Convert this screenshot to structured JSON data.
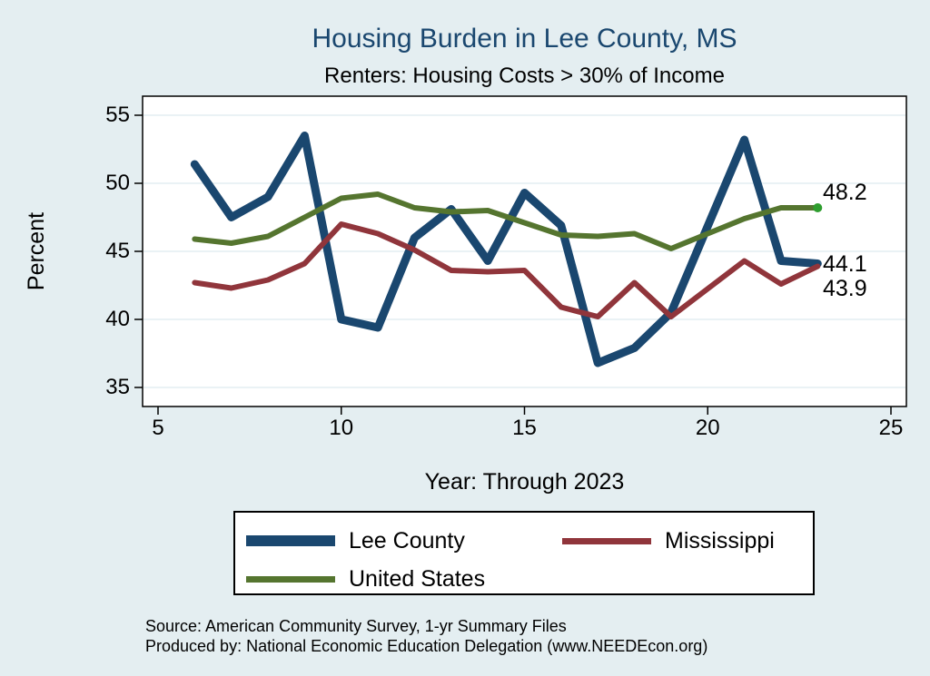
{
  "header": {
    "title": "Housing Burden in Lee County, MS",
    "subtitle": "Renters: Housing Costs > 30% of Income"
  },
  "chart_data": {
    "type": "line",
    "x": [
      6,
      7,
      8,
      9,
      10,
      11,
      12,
      13,
      14,
      15,
      16,
      17,
      18,
      19,
      21,
      22,
      23
    ],
    "series": [
      {
        "name": "Lee County",
        "color": "#1a476f",
        "stroke_width": 9,
        "values": [
          51.4,
          47.5,
          49.0,
          53.5,
          40.0,
          39.4,
          46.0,
          48.1,
          44.3,
          49.3,
          46.9,
          36.8,
          37.9,
          40.5,
          53.2,
          44.3,
          44.1
        ]
      },
      {
        "name": "Mississippi",
        "color": "#90353b",
        "stroke_width": 6,
        "values": [
          42.7,
          42.3,
          42.9,
          44.1,
          47.0,
          46.3,
          45.1,
          43.6,
          43.5,
          43.6,
          40.9,
          40.2,
          42.7,
          40.2,
          44.3,
          42.6,
          43.9
        ]
      },
      {
        "name": "United States",
        "color": "#55752f",
        "stroke_width": 6,
        "values": [
          45.9,
          45.6,
          46.1,
          47.5,
          48.9,
          49.2,
          48.2,
          47.9,
          48.0,
          47.1,
          46.2,
          46.1,
          46.3,
          45.2,
          47.4,
          48.2,
          48.2
        ],
        "end_marker": {
          "color": "#2f9e2f",
          "radius": 5
        }
      }
    ],
    "title": "Housing Burden in Lee County, MS",
    "subtitle": "Renters: Housing Costs > 30% of Income",
    "xlabel": "Year: Through 2023",
    "ylabel": "Percent",
    "xlim": [
      5,
      25
    ],
    "ylim": [
      35,
      55
    ],
    "x_ticks": [
      5,
      10,
      15,
      20,
      25
    ],
    "y_ticks": [
      35,
      40,
      45,
      50,
      55
    ],
    "grid": "horizontal",
    "note": "x axis is year minus 2000; 2020 missing (no data point between 19 and 21)",
    "legend_position": "bottom",
    "end_labels": [
      {
        "text": "48.2",
        "value": 48.2,
        "dy": -17
      },
      {
        "text": "44.1",
        "value": 44.1,
        "dy": 0
      },
      {
        "text": "43.9",
        "value": 43.9,
        "dy": 24
      }
    ]
  },
  "legend": {
    "items": [
      {
        "label": "Lee County",
        "color": "#1a476f",
        "thickness": 12
      },
      {
        "label": "Mississippi",
        "color": "#90353b",
        "thickness": 7
      },
      {
        "label": "United States",
        "color": "#55752f",
        "thickness": 7
      }
    ]
  },
  "footer": {
    "source_line": "Source: American Community Survey, 1-yr Summary Files",
    "produced_line": "Produced by: National Economic Education Delegation (www.NEEDEcon.org)"
  },
  "colors": {
    "background": "#e4eef1",
    "plot_bg": "#ffffff",
    "grid": "#e3eef2",
    "axis": "#000000",
    "title": "#1a476f",
    "end_marker": "#2f9e2f"
  }
}
